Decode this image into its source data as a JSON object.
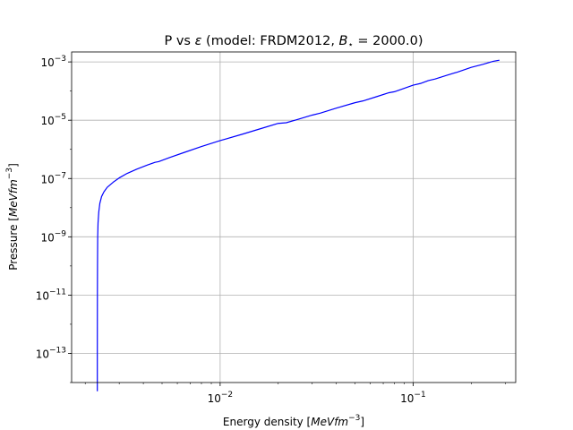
{
  "chart_data": {
    "type": "line",
    "title_parts": {
      "lead": "P vs ",
      "epsilon": "ε",
      "mid": " (model: FRDM2012, ",
      "B": "B",
      "star": "⋆",
      "tail": " = 2000.0)"
    },
    "xlabel_parts": {
      "lead": "Energy density [",
      "unit": "MeVfm",
      "exp": "−3",
      "close": "]"
    },
    "ylabel_parts": {
      "lead": "Pressure [",
      "unit": "MeVfm",
      "exp": "−3",
      "close": "]"
    },
    "xscale": "log",
    "yscale": "log",
    "xlim": [
      0.0017,
      0.34
    ],
    "ylim": [
      1e-14,
      0.0022
    ],
    "grid": true,
    "x_ticks": [
      {
        "value": 0.01,
        "base": "10",
        "exp": "−2"
      },
      {
        "value": 0.1,
        "base": "10",
        "exp": "−1"
      }
    ],
    "y_ticks": [
      {
        "value": 1e-13,
        "base": "10",
        "exp": "−13"
      },
      {
        "value": 1e-11,
        "base": "10",
        "exp": "−11"
      },
      {
        "value": 1e-09,
        "base": "10",
        "exp": "−9"
      },
      {
        "value": 1e-07,
        "base": "10",
        "exp": "−7"
      },
      {
        "value": 1e-05,
        "base": "10",
        "exp": "−5"
      },
      {
        "value": 0.001,
        "base": "10",
        "exp": "−3"
      }
    ],
    "series": [
      {
        "color": "#0000ff",
        "x": [
          0.00231,
          0.00231,
          0.002312,
          0.002315,
          0.00232,
          0.00233,
          0.00235,
          0.00238,
          0.00243,
          0.0025,
          0.0026,
          0.0028,
          0.003,
          0.0033,
          0.0037,
          0.0042,
          0.0046,
          0.0048,
          0.0055,
          0.0065,
          0.008,
          0.01,
          0.013,
          0.016,
          0.02,
          0.022,
          0.025,
          0.03,
          0.033,
          0.04,
          0.05,
          0.055,
          0.065,
          0.075,
          0.08,
          0.09,
          0.1,
          0.11,
          0.12,
          0.13,
          0.15,
          0.17,
          0.2,
          0.23,
          0.26,
          0.28
        ],
        "y": [
          5e-15,
          1e-13,
          1e-11,
          1e-10,
          1e-09,
          3e-09,
          7e-09,
          1.4e-08,
          2.4e-08,
          3.5e-08,
          5e-08,
          7.6e-08,
          1.05e-07,
          1.5e-07,
          2.1e-07,
          2.9e-07,
          3.6e-07,
          3.8e-07,
          5.3e-07,
          7.8e-07,
          1.25e-06,
          2e-06,
          3.3e-06,
          5e-06,
          7.8e-06,
          8.2e-06,
          1.05e-05,
          1.5e-05,
          1.75e-05,
          2.6e-05,
          4e-05,
          4.6e-05,
          6.5e-05,
          8.8e-05,
          9.5e-05,
          0.000125,
          0.00016,
          0.000185,
          0.00023,
          0.00026,
          0.00035,
          0.00045,
          0.00065,
          0.00083,
          0.00105,
          0.00115
        ]
      }
    ]
  }
}
